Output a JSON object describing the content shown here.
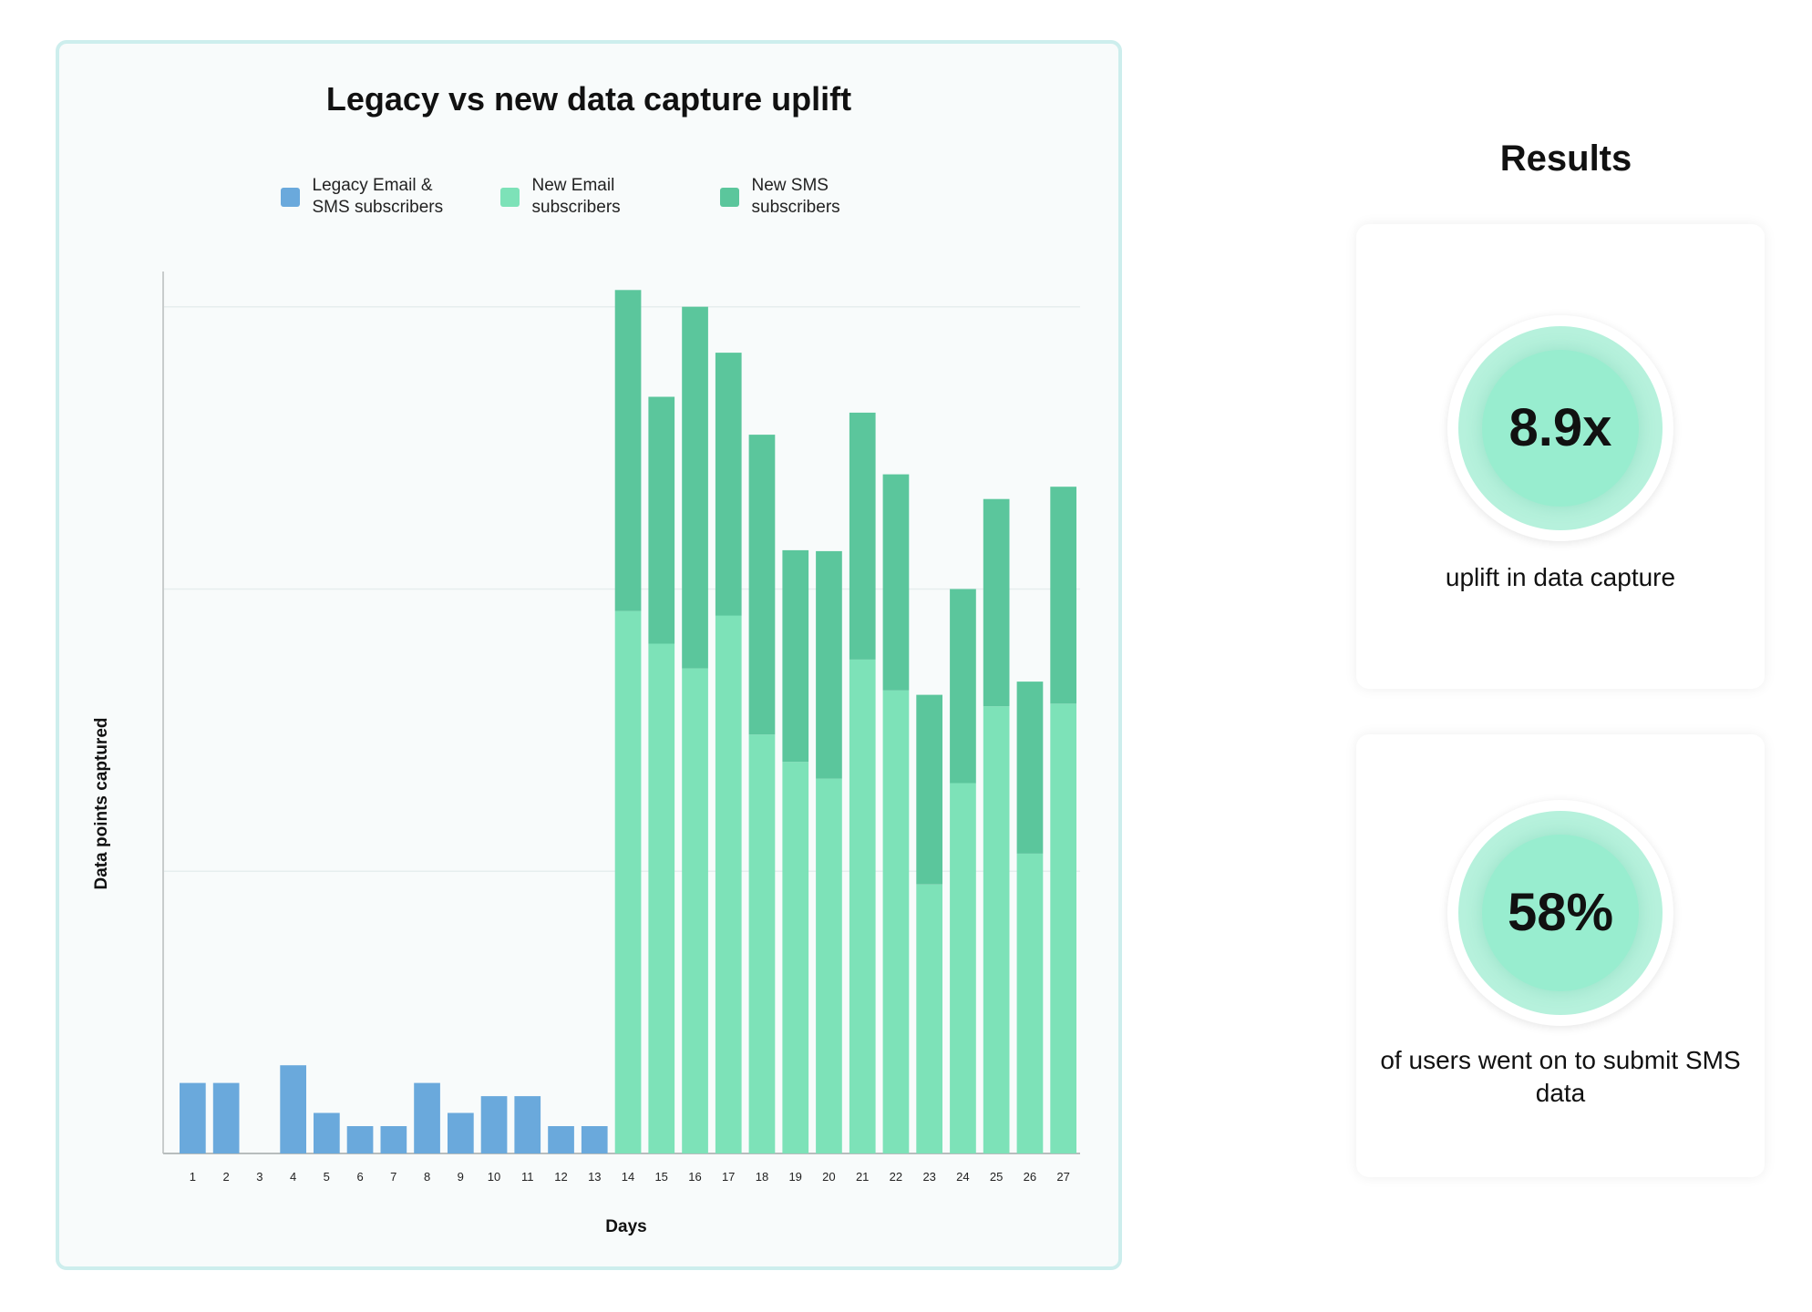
{
  "chart_data": {
    "type": "bar",
    "stacked": true,
    "title": "Legacy vs new data capture uplift",
    "xlabel": "Days",
    "ylabel": "Data points captured",
    "categories": [
      "1",
      "2",
      "3",
      "4",
      "5",
      "6",
      "7",
      "8",
      "9",
      "10",
      "11",
      "12",
      "13",
      "14",
      "15",
      "16",
      "17",
      "18",
      "19",
      "20",
      "21",
      "22",
      "23",
      "24",
      "25",
      "26",
      "27"
    ],
    "series": [
      {
        "name": "Legacy Email & SMS subscribers",
        "color": "#6aa9dc",
        "values": [
          8,
          8,
          0,
          10,
          4.6,
          3.1,
          3.1,
          8,
          4.6,
          6.5,
          6.5,
          3.1,
          3.1,
          0,
          0,
          0,
          0,
          0,
          0,
          0,
          0,
          0,
          0,
          0,
          0,
          0,
          0
        ]
      },
      {
        "name": "New Email subscribers",
        "color": "#7de2b8",
        "values": [
          0,
          0,
          0,
          0,
          0,
          0,
          0,
          0,
          0,
          0,
          0,
          0,
          0,
          61.5,
          57.8,
          55,
          61,
          47.5,
          44.4,
          42.5,
          56,
          52.5,
          30.5,
          42,
          50.7,
          34,
          51
        ]
      },
      {
        "name": "New SMS subscribers",
        "color": "#5bc69c",
        "values": [
          0,
          0,
          0,
          0,
          0,
          0,
          0,
          0,
          0,
          0,
          0,
          0,
          0,
          36.4,
          28,
          41,
          29.8,
          34,
          24,
          25.8,
          28,
          24.5,
          21.5,
          22,
          23.5,
          19.5,
          24.6
        ]
      }
    ],
    "ylim": [
      0,
      100
    ],
    "gridlines": [
      32,
      64,
      96
    ],
    "grid": true,
    "legend_position": "top"
  },
  "results": {
    "title": "Results",
    "stats": [
      {
        "value": "8.9x",
        "description": "uplift in data capture"
      },
      {
        "value": "58%",
        "description": "of users went on to submit SMS data"
      }
    ]
  },
  "colors": {
    "card_border": "#cdeeed",
    "circle_accent": "#98edcf"
  }
}
